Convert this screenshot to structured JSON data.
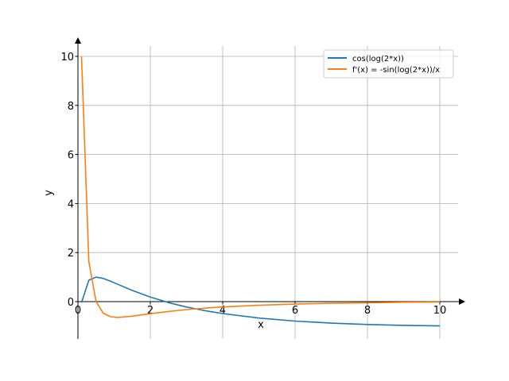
{
  "chart_data": {
    "type": "line",
    "title": "",
    "xlabel": "x",
    "ylabel": "y",
    "xlim": [
      0,
      10.7
    ],
    "ylim": [
      -1.52,
      10.74
    ],
    "grid": true,
    "legend_position": "top-right",
    "xticks": [
      "0",
      "2",
      "4",
      "6",
      "8",
      "10"
    ],
    "xtick_values": [
      0,
      2,
      4,
      6,
      8,
      10
    ],
    "yticks": [
      "0",
      "2",
      "4",
      "6",
      "8",
      "10"
    ],
    "ytick_values": [
      0,
      2,
      4,
      6,
      8,
      10
    ],
    "x": [
      0.1,
      0.3,
      0.5,
      0.7,
      0.9,
      1.1,
      1.5,
      2,
      2.5,
      3,
      3.5,
      4,
      5,
      6,
      7,
      8,
      9,
      10
    ],
    "series": [
      {
        "name": "cos(log(2*x))",
        "color": "#1f77b4",
        "values": [
          -0.0386,
          0.8724,
          1.0,
          0.9439,
          0.8322,
          0.7049,
          0.4548,
          0.1835,
          -0.0386,
          -0.2193,
          -0.3666,
          -0.4865,
          -0.6684,
          -0.7914,
          -0.8776,
          -0.9327,
          -0.9689,
          -0.9891
        ]
      },
      {
        "name": "f'(x) = -sin(log(2*x))/x",
        "color": "#ff7f0e",
        "values": [
          9.993,
          1.63,
          0.0,
          -0.4717,
          -0.6162,
          -0.6448,
          -0.5937,
          -0.4915,
          -0.3997,
          -0.3252,
          -0.2658,
          -0.2184,
          -0.1488,
          -0.1019,
          -0.0685,
          -0.0451,
          -0.0275,
          -0.0147
        ]
      }
    ]
  }
}
